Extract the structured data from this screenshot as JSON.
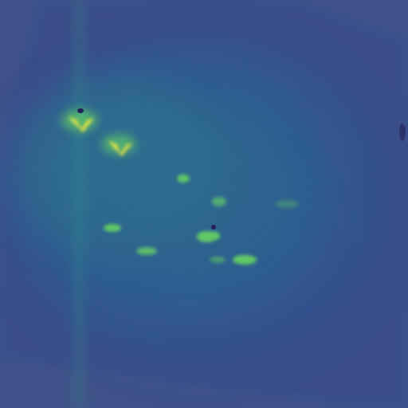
{
  "image": {
    "kind": "false-color astronomical/solar-style intensity image",
    "colormap": "viridis-like",
    "colors": {
      "outer_background": "#3f5189",
      "frame_fill": "#3b4f8a",
      "frame_shadow": "#384a83",
      "disk_base": "#314a8c",
      "disk_mid": "#2f5f8f",
      "disk_glow": "#2d7391",
      "bright_cyan": "#32b08a",
      "bright_green": "#61c966",
      "bright_yellow": "#f5e93f",
      "dark_spot": "#241f55"
    }
  }
}
